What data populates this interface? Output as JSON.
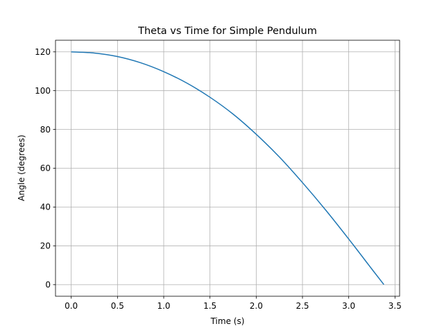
{
  "chart_data": {
    "type": "line",
    "title": "Theta vs Time for Simple Pendulum",
    "xlabel": "Time (s)",
    "ylabel": "Angle (degrees)",
    "xlim": [
      -0.17,
      3.55
    ],
    "ylim": [
      -6,
      126
    ],
    "x_ticks": [
      0.0,
      0.5,
      1.0,
      1.5,
      2.0,
      2.5,
      3.0,
      3.5
    ],
    "x_tick_labels": [
      "0.0",
      "0.5",
      "1.0",
      "1.5",
      "2.0",
      "2.5",
      "3.0",
      "3.5"
    ],
    "y_ticks": [
      0,
      20,
      40,
      60,
      80,
      100,
      120
    ],
    "y_tick_labels": [
      "0",
      "20",
      "40",
      "60",
      "80",
      "100",
      "120"
    ],
    "grid": true,
    "legend": "none",
    "series": [
      {
        "color": "#1f77b4",
        "x": [
          0.0,
          0.25,
          0.5,
          0.75,
          1.0,
          1.25,
          1.5,
          1.75,
          2.0,
          2.25,
          2.5,
          2.75,
          3.0,
          3.25,
          3.38
        ],
        "y": [
          120.0,
          119.4,
          117.6,
          114.4,
          109.8,
          103.9,
          96.6,
          87.9,
          77.5,
          65.8,
          52.6,
          38.5,
          23.5,
          8.0,
          0.0
        ]
      }
    ]
  }
}
